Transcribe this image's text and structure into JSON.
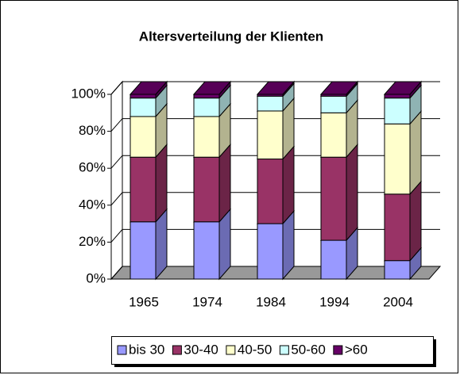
{
  "chart_data": {
    "type": "bar",
    "stacked": true,
    "three_d": true,
    "title": "Altersverteilung der Klienten",
    "categories": [
      "1965",
      "1974",
      "1984",
      "1994",
      "2004"
    ],
    "series": [
      {
        "name": "bis 30",
        "color": "#9999ff",
        "values": [
          31,
          31,
          30,
          21,
          10
        ]
      },
      {
        "name": "30-40",
        "color": "#993366",
        "values": [
          35,
          35,
          35,
          45,
          36
        ]
      },
      {
        "name": "40-50",
        "color": "#ffffcc",
        "values": [
          22,
          22,
          26,
          24,
          38
        ]
      },
      {
        "name": "50-60",
        "color": "#ccffff",
        "values": [
          10,
          10,
          8,
          9,
          14
        ]
      },
      {
        "name": ">60",
        "color": "#660066",
        "values": [
          2,
          2,
          1,
          1,
          2
        ]
      }
    ],
    "ylim": [
      0,
      100
    ],
    "yticks": [
      {
        "value": 0,
        "label": "0%"
      },
      {
        "value": 20,
        "label": "20%"
      },
      {
        "value": 40,
        "label": "40%"
      },
      {
        "value": 60,
        "label": "60%"
      },
      {
        "value": 80,
        "label": "80%"
      },
      {
        "value": 100,
        "label": "100%"
      }
    ],
    "grid": true,
    "legend": "bottom"
  }
}
